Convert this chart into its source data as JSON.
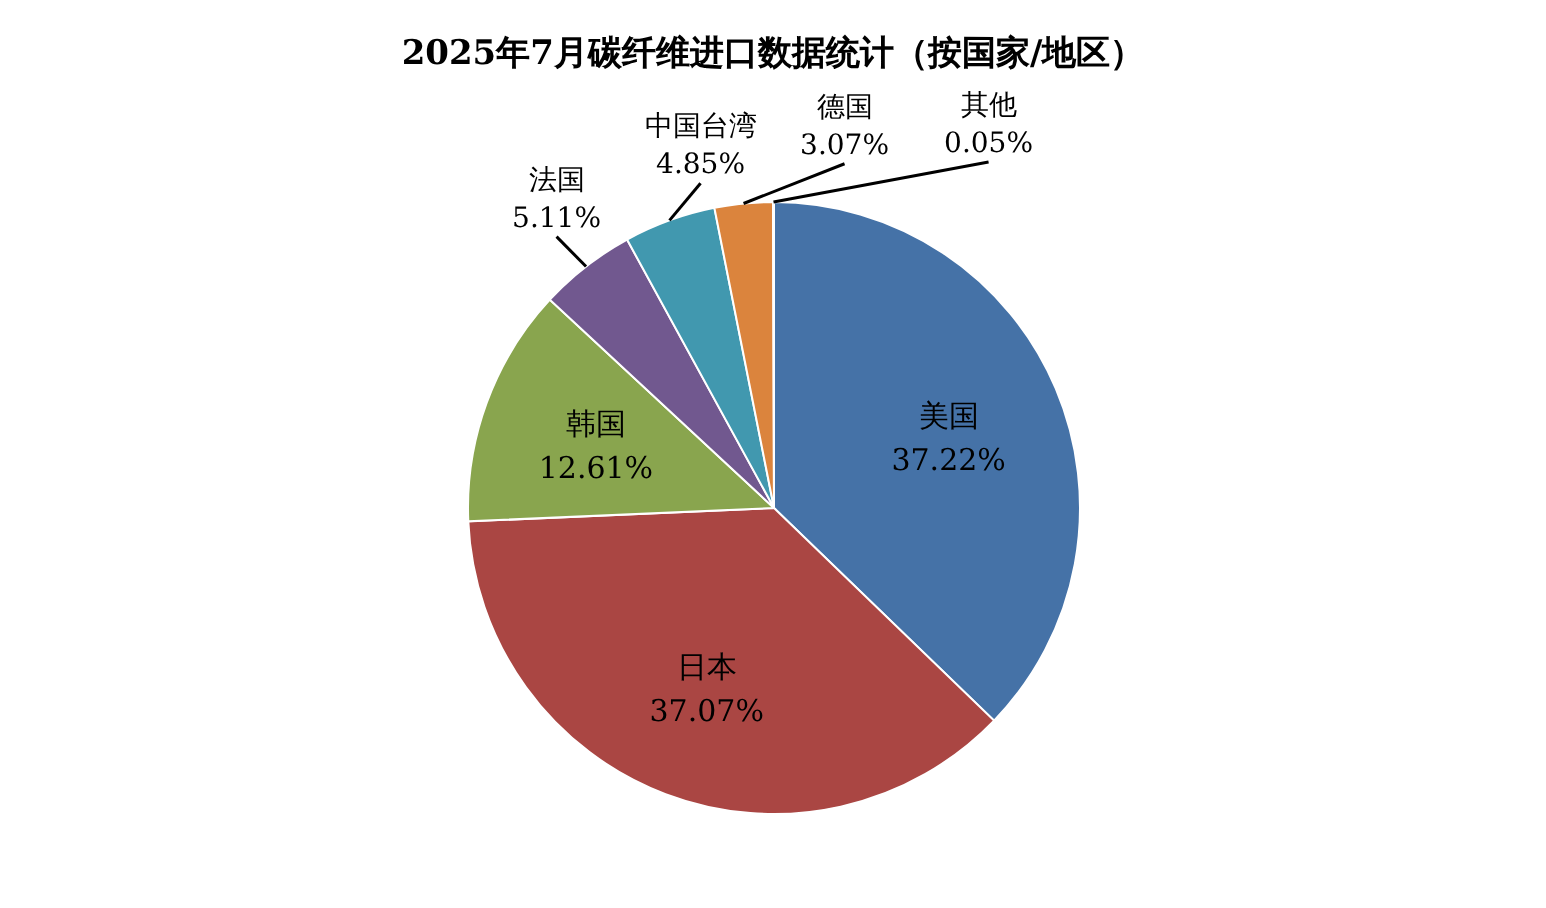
{
  "chart_data": {
    "type": "pie",
    "title": "2025年7月碳纤维进口数据统计（按国家/地区）",
    "categories": [
      "美国",
      "日本",
      "韩国",
      "法国",
      "中国台湾",
      "德国",
      "其他"
    ],
    "values": [
      37.22,
      37.07,
      12.61,
      5.11,
      4.85,
      3.07,
      0.05
    ],
    "value_labels": [
      "37.22%",
      "37.07%",
      "12.61%",
      "5.11%",
      "4.85%",
      "3.07%",
      "0.05%"
    ],
    "colors": [
      "#4572a7",
      "#aa4643",
      "#89a54e",
      "#71588f",
      "#4198af",
      "#db843d",
      "#93a9cf"
    ]
  }
}
